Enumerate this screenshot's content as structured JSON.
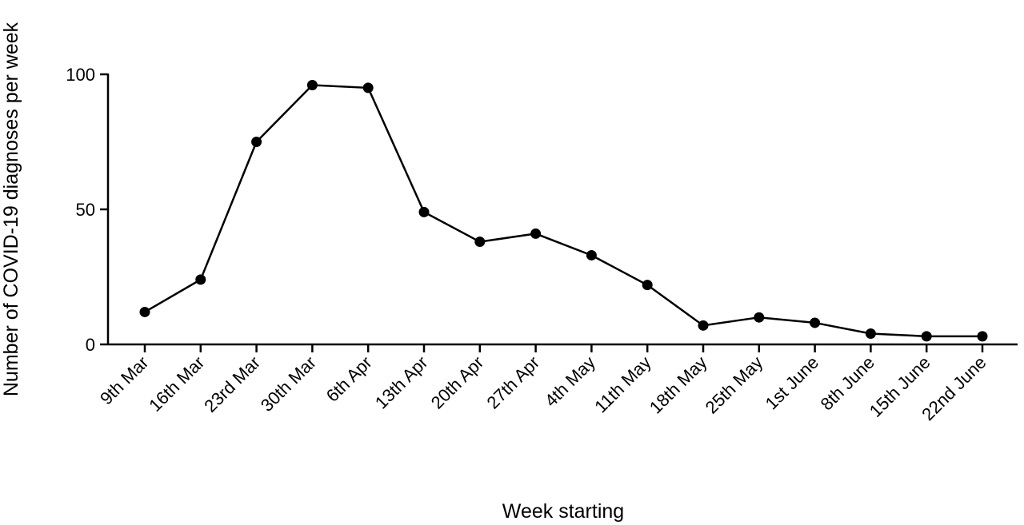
{
  "chart_data": {
    "type": "line",
    "xlabel": "Week starting",
    "ylabel": "Number of COVID-19 diagnoses per week",
    "categories": [
      "9th Mar",
      "16th Mar",
      "23rd Mar",
      "30th Mar",
      "6th Apr",
      "13th Apr",
      "20th Apr",
      "27th Apr",
      "4th May",
      "11th May",
      "18th May",
      "25th May",
      "1st June",
      "8th June",
      "15th June",
      "22nd June"
    ],
    "series": [
      {
        "values": [
          12,
          24,
          75,
          96,
          95,
          49,
          38,
          41,
          33,
          22,
          7,
          10,
          8,
          4,
          3,
          3
        ]
      }
    ],
    "ylim": [
      0,
      100
    ],
    "yticks": [
      0,
      50,
      100
    ],
    "grid": false,
    "legend": "none",
    "colors": {
      "line": "#000000",
      "marker": "#000000"
    }
  }
}
